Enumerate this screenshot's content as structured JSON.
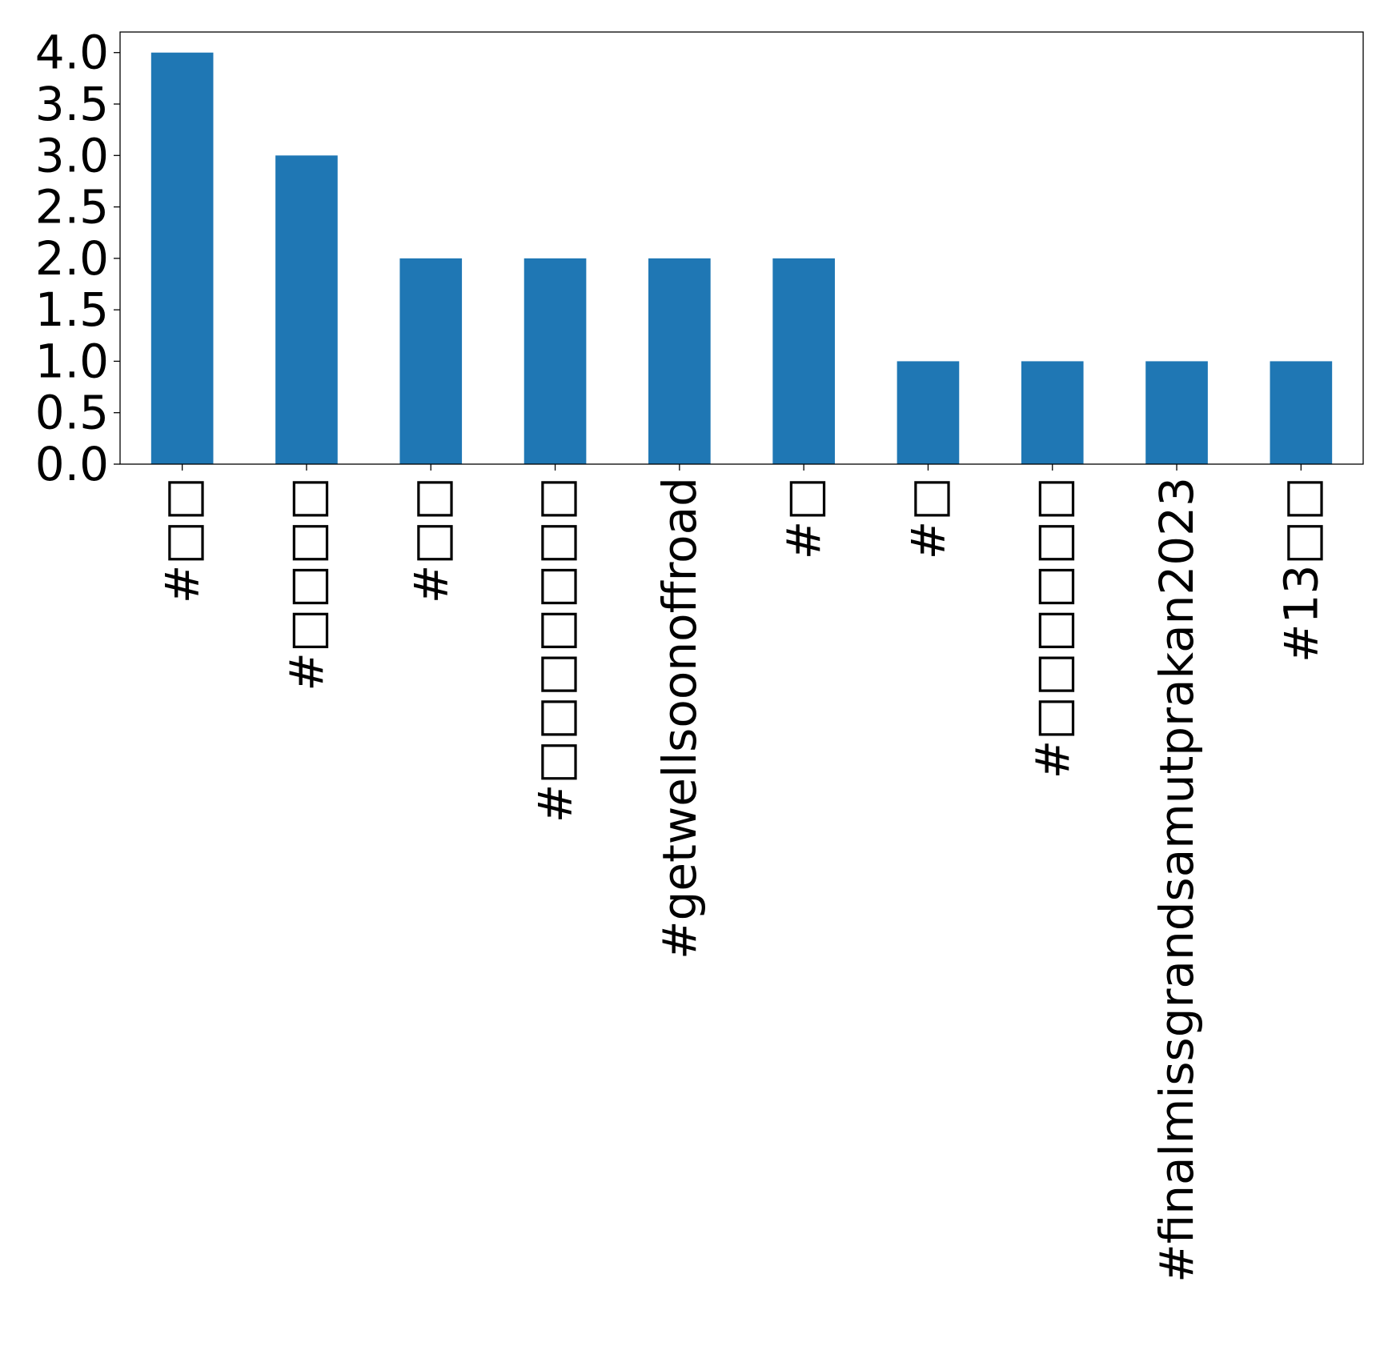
{
  "chart_data": {
    "type": "bar",
    "categories": [
      "#□□",
      "#□□□□",
      "#□□",
      "#□□□□□□□",
      "#getwellsoonoffroad",
      "#□",
      "#□",
      "#□□□□□□",
      "#finalmissgrandsamutprakan2023",
      "#13□□"
    ],
    "values": [
      4,
      3,
      2,
      2,
      2,
      2,
      1,
      1,
      1,
      1
    ],
    "y_ticks": [
      "0.0",
      "0.5",
      "1.0",
      "1.5",
      "2.0",
      "2.5",
      "3.0",
      "3.5",
      "4.0"
    ],
    "ylim": [
      0,
      4.2
    ],
    "title": "",
    "xlabel": "",
    "ylabel": "",
    "grid": false,
    "legend": "none",
    "bar_color": "#1f77b4",
    "x_tick_rotation": "vertical"
  }
}
